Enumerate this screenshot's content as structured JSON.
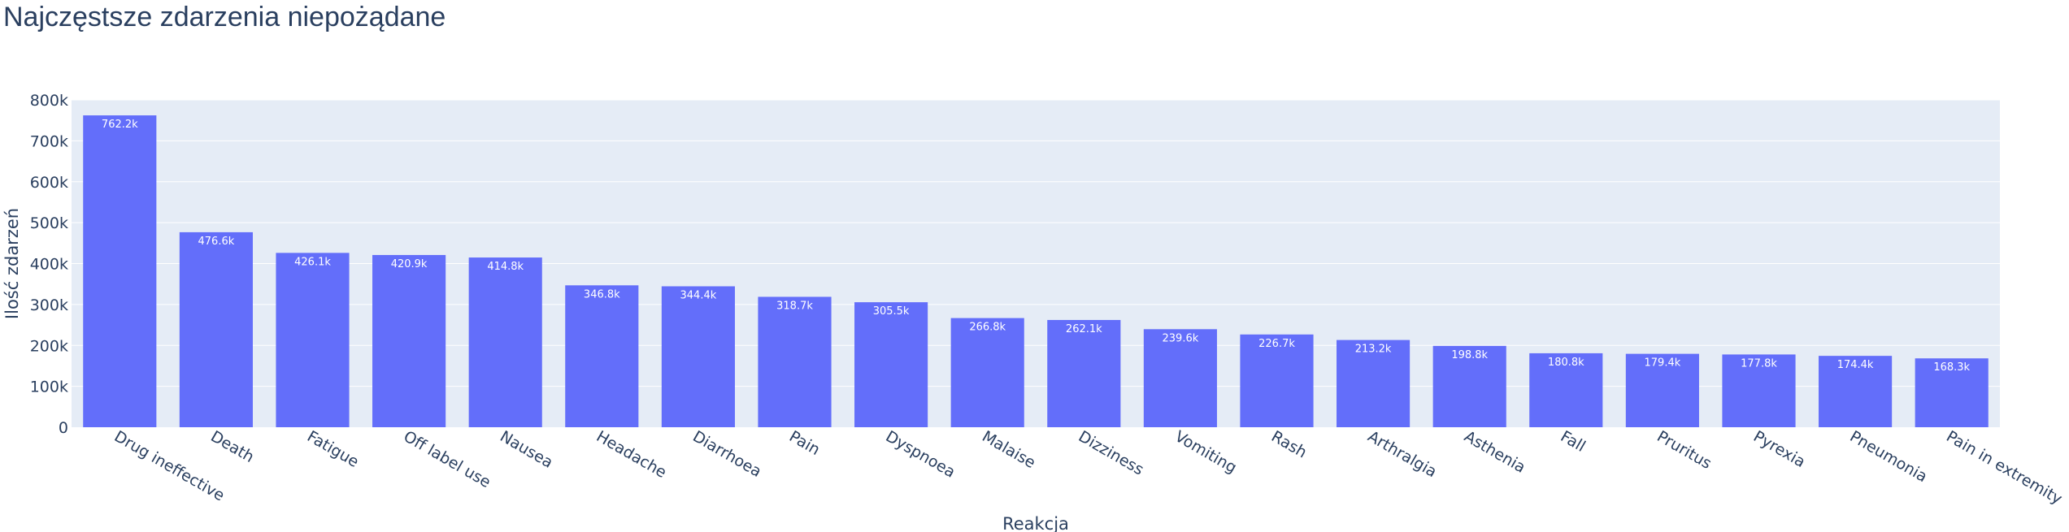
{
  "chart_data": {
    "type": "bar",
    "title": "Najczęstsze zdarzenia niepożądane",
    "xlabel": "Reakcja",
    "ylabel": "Ilość zdarzeń",
    "ylim": [
      0,
      800000
    ],
    "y_ticks": [
      0,
      100000,
      200000,
      300000,
      400000,
      500000,
      600000,
      700000,
      800000
    ],
    "y_tick_labels": [
      "0",
      "100k",
      "200k",
      "300k",
      "400k",
      "500k",
      "600k",
      "700k",
      "800k"
    ],
    "grid": true,
    "categories": [
      "Drug ineffective",
      "Death",
      "Fatigue",
      "Off label use",
      "Nausea",
      "Headache",
      "Diarrhoea",
      "Pain",
      "Dyspnoea",
      "Malaise",
      "Dizziness",
      "Vomiting",
      "Rash",
      "Arthralgia",
      "Asthenia",
      "Fall",
      "Pruritus",
      "Pyrexia",
      "Pneumonia",
      "Pain in extremity"
    ],
    "values": [
      762200,
      476600,
      426100,
      420900,
      414800,
      346800,
      344400,
      318700,
      305500,
      266800,
      262100,
      239600,
      226700,
      213200,
      198800,
      180800,
      179400,
      177800,
      174400,
      168300
    ],
    "value_labels": [
      "762.2k",
      "476.6k",
      "426.1k",
      "420.9k",
      "414.8k",
      "346.8k",
      "344.4k",
      "318.7k",
      "305.5k",
      "266.8k",
      "262.1k",
      "239.6k",
      "226.7k",
      "213.2k",
      "198.8k",
      "180.8k",
      "179.4k",
      "177.8k",
      "174.4k",
      "168.3k"
    ],
    "colors": {
      "bar": "#636efa",
      "plot_bg": "#e5ecf6",
      "grid": "#ffffff",
      "text": "#2a3f5f",
      "bar_label": "#ffffff"
    }
  }
}
